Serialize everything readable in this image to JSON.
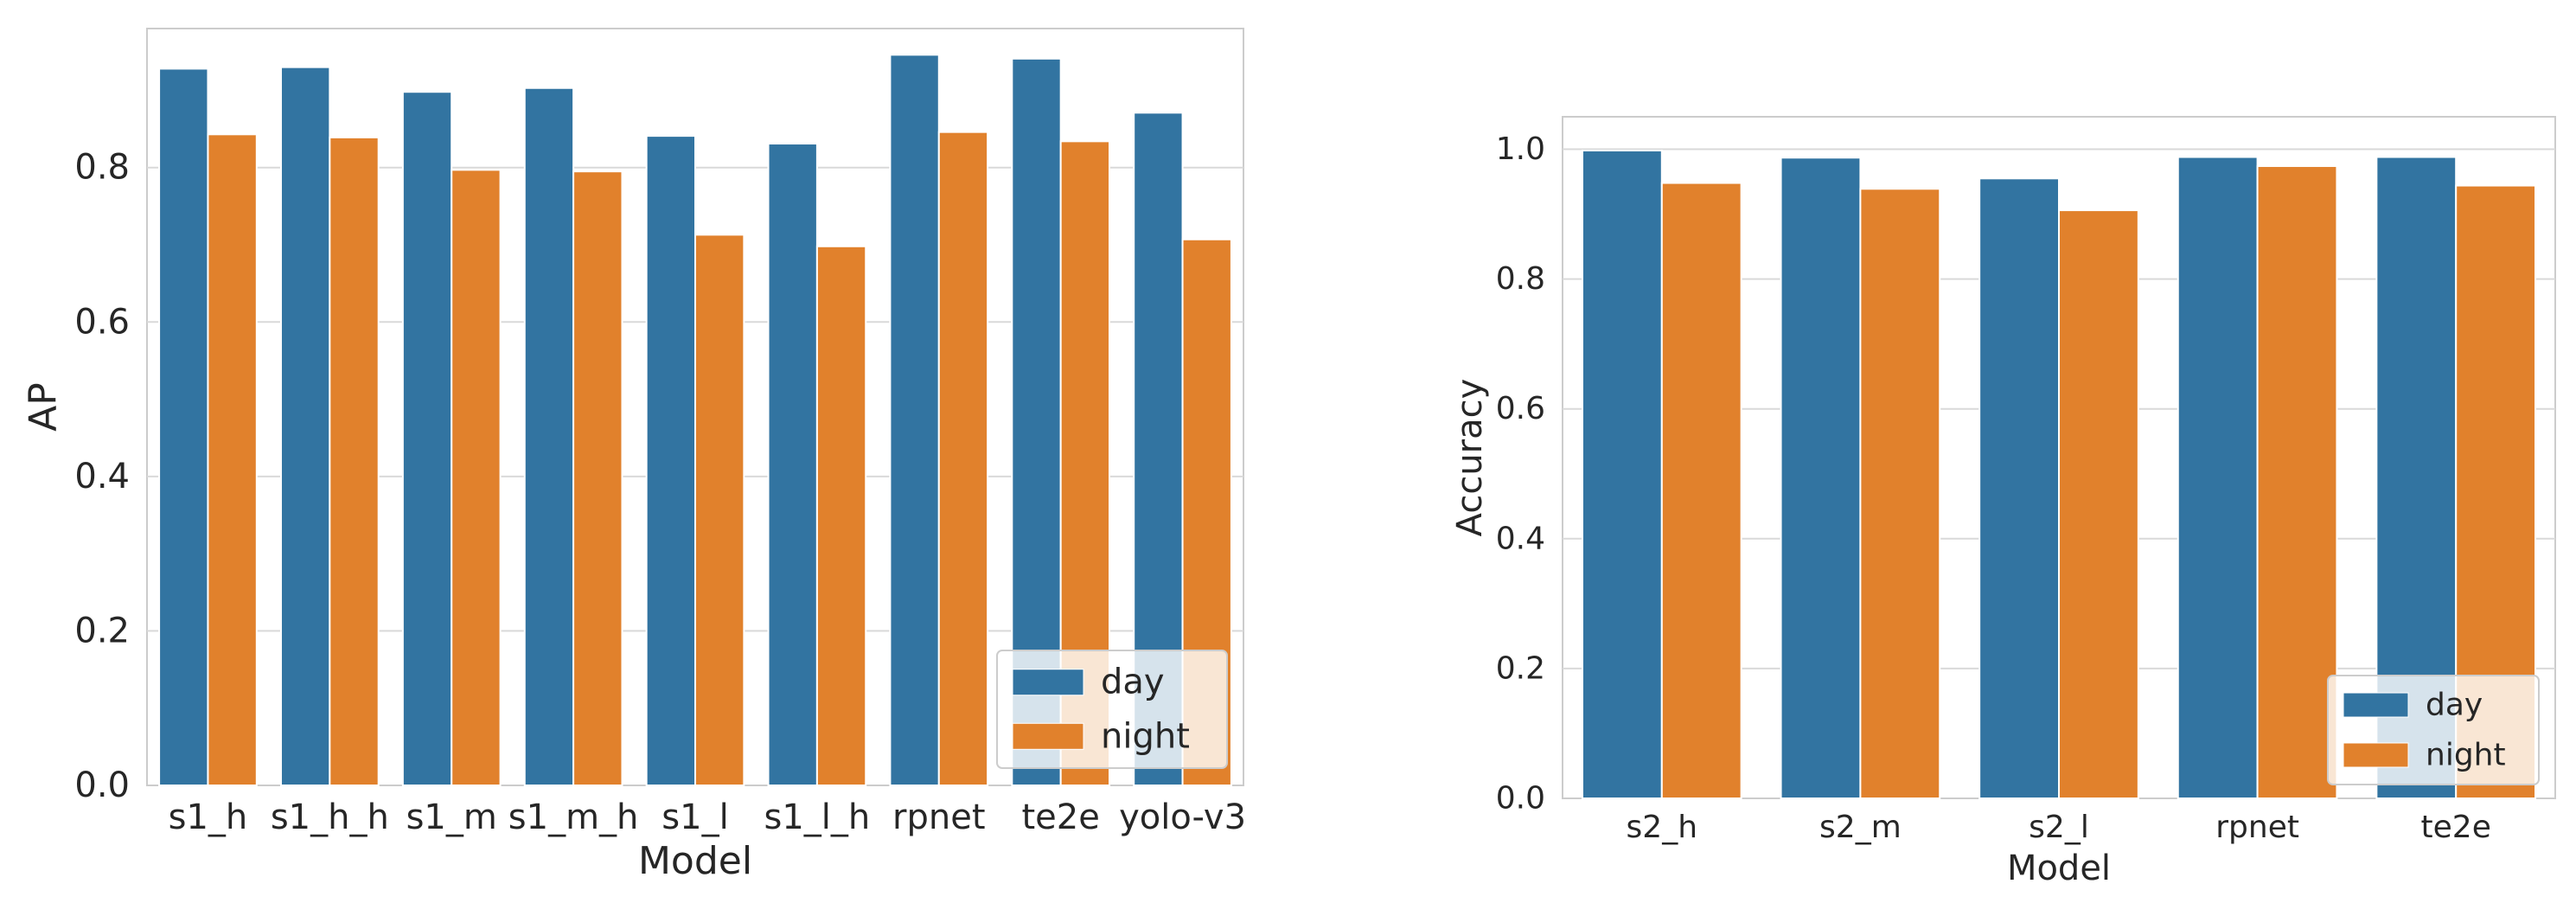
{
  "colors": {
    "day": "#3274a1",
    "night": "#e1812c",
    "grid": "#d9d9d9",
    "spine": "#cccccc",
    "text": "#262626"
  },
  "chart_data": [
    {
      "type": "bar",
      "title": "",
      "xlabel": "Model",
      "ylabel": "AP",
      "ylim": [
        0.0,
        0.98
      ],
      "yticks": [
        "0.0",
        "0.2",
        "0.4",
        "0.6",
        "0.8"
      ],
      "categories": [
        "s1_h",
        "s1_h_h",
        "s1_m",
        "s1_m_h",
        "s1_l",
        "s1_l_h",
        "rpnet",
        "te2e",
        "yolo-v3"
      ],
      "series": [
        {
          "name": "day",
          "values": [
            0.928,
            0.93,
            0.898,
            0.903,
            0.841,
            0.831,
            0.946,
            0.941,
            0.871
          ]
        },
        {
          "name": "night",
          "values": [
            0.843,
            0.839,
            0.797,
            0.795,
            0.713,
            0.698,
            0.846,
            0.834,
            0.707
          ]
        }
      ],
      "legend": {
        "position": "lower-right",
        "entries": [
          "day",
          "night"
        ]
      },
      "grid": true
    },
    {
      "type": "bar",
      "title": "",
      "xlabel": "Model",
      "ylabel": "Accuracy",
      "ylim": [
        0.0,
        1.05
      ],
      "yticks": [
        "0.0",
        "0.2",
        "0.4",
        "0.6",
        "0.8",
        "1.0"
      ],
      "categories": [
        "s2_h",
        "s2_m",
        "s2_l",
        "rpnet",
        "te2e"
      ],
      "series": [
        {
          "name": "day",
          "values": [
            0.998,
            0.987,
            0.955,
            0.988,
            0.988
          ]
        },
        {
          "name": "night",
          "values": [
            0.948,
            0.939,
            0.906,
            0.974,
            0.944
          ]
        }
      ],
      "legend": {
        "position": "lower-right",
        "entries": [
          "day",
          "night"
        ]
      },
      "grid": true
    }
  ]
}
